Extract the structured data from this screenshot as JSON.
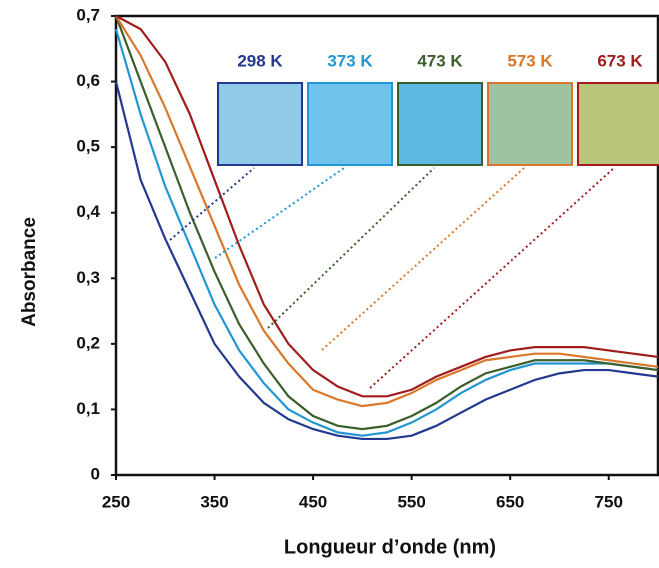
{
  "chart_data": {
    "type": "line",
    "x_label": "Absorbance",
    "xaxis_label": "Longueur d’onde (nm)",
    "x": [
      250,
      275,
      300,
      325,
      350,
      375,
      400,
      425,
      450,
      475,
      500,
      525,
      550,
      575,
      600,
      625,
      650,
      675,
      700,
      725,
      750,
      775,
      800
    ],
    "xlim": [
      250,
      800
    ],
    "xticks": [
      250,
      350,
      450,
      550,
      650,
      750
    ],
    "ylim": [
      0,
      0.7
    ],
    "yticks": [
      0,
      {
        "value": 0.1,
        "label": "0,1"
      },
      {
        "value": 0.2,
        "label": "0,2"
      },
      {
        "value": 0.3,
        "label": "0,3"
      },
      {
        "value": 0.4,
        "label": "0,4"
      },
      {
        "value": 0.5,
        "label": "0,5"
      },
      {
        "value": 0.6,
        "label": "0,6"
      },
      {
        "value": 0.7,
        "label": "0,7"
      }
    ],
    "series": [
      {
        "name": "298 K",
        "color": "#22398f",
        "values": [
          0.6,
          0.45,
          0.36,
          0.28,
          0.2,
          0.15,
          0.11,
          0.085,
          0.07,
          0.06,
          0.055,
          0.055,
          0.06,
          0.075,
          0.095,
          0.115,
          0.13,
          0.145,
          0.155,
          0.16,
          0.16,
          0.155,
          0.15
        ]
      },
      {
        "name": "373 K",
        "color": "#2196d3",
        "values": [
          0.68,
          0.55,
          0.44,
          0.35,
          0.26,
          0.19,
          0.14,
          0.1,
          0.08,
          0.065,
          0.06,
          0.065,
          0.08,
          0.1,
          0.125,
          0.145,
          0.16,
          0.17,
          0.17,
          0.17,
          0.17,
          0.165,
          0.16
        ]
      },
      {
        "name": "473 K",
        "color": "#3b5e2b",
        "values": [
          0.7,
          0.6,
          0.5,
          0.4,
          0.31,
          0.23,
          0.17,
          0.12,
          0.09,
          0.075,
          0.07,
          0.075,
          0.09,
          0.11,
          0.135,
          0.155,
          0.165,
          0.175,
          0.175,
          0.175,
          0.17,
          0.165,
          0.16
        ]
      },
      {
        "name": "573 K",
        "color": "#d9772a",
        "values": [
          0.7,
          0.64,
          0.56,
          0.47,
          0.38,
          0.29,
          0.22,
          0.17,
          0.13,
          0.115,
          0.105,
          0.11,
          0.125,
          0.145,
          0.16,
          0.175,
          0.18,
          0.185,
          0.185,
          0.18,
          0.175,
          0.17,
          0.165
        ]
      },
      {
        "name": "673 K",
        "color": "#a11c1c",
        "values": [
          0.7,
          0.68,
          0.63,
          0.55,
          0.45,
          0.35,
          0.26,
          0.2,
          0.16,
          0.135,
          0.12,
          0.12,
          0.13,
          0.15,
          0.165,
          0.18,
          0.19,
          0.195,
          0.195,
          0.195,
          0.19,
          0.185,
          0.18
        ]
      }
    ]
  }
}
